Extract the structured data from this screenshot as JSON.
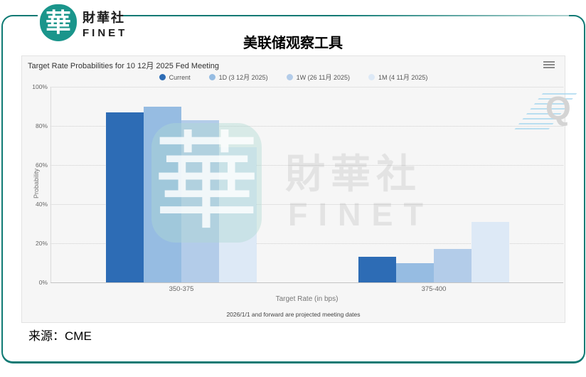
{
  "page": {
    "title": "美联储观察工具",
    "source": "来源：CME"
  },
  "logo": {
    "glyph": "華",
    "name_zh": "財華社",
    "name_en": "FINET"
  },
  "chart": {
    "menu_icon": "hamburger-menu",
    "footnote": "2026/1/1 and forward are projected meeting dates",
    "watermarks": {
      "hua_glyph": "華",
      "finet_zh": "財華社",
      "finet_en": "FINET",
      "quikstrike_q": "Q"
    }
  },
  "chart_data": {
    "type": "bar",
    "title": "Target Rate Probabilities for 10 12月 2025 Fed Meeting",
    "categories": [
      "350-375",
      "375-400"
    ],
    "series": [
      {
        "name": "Current",
        "color": "#2d6cb5",
        "values": [
          87,
          13
        ]
      },
      {
        "name": "1D (3 12月 2025)",
        "color": "#96bce2",
        "values": [
          90,
          10
        ]
      },
      {
        "name": "1W (26 11月 2025)",
        "color": "#b3cce9",
        "values": [
          83,
          17
        ]
      },
      {
        "name": "1M (4 11月 2025)",
        "color": "#dde9f6",
        "values": [
          69,
          31
        ]
      }
    ],
    "xlabel": "Target Rate (in bps)",
    "ylabel": "Probability",
    "ylim": [
      0,
      100
    ],
    "yticks": [
      100,
      80,
      60,
      40,
      20,
      0
    ],
    "grid": "dotted-horizontal",
    "legend_position": "top-center"
  }
}
